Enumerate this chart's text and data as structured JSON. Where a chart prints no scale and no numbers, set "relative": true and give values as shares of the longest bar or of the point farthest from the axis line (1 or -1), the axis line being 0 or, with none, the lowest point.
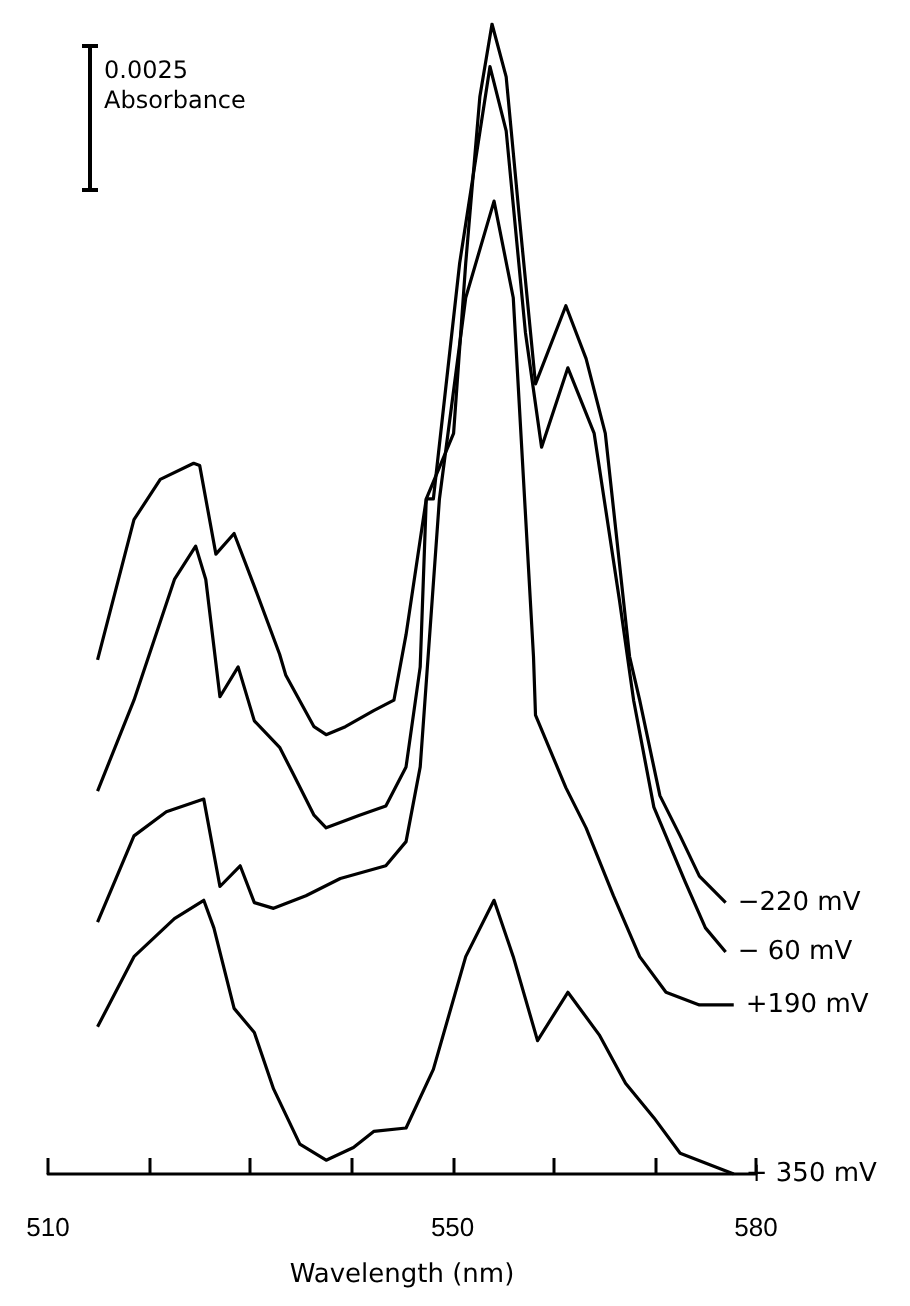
{
  "chart_data": {
    "type": "line",
    "relative": true,
    "xlabel": "Wavelength (nm)",
    "annotations": [
      "0.0025 Absorbance"
    ],
    "xlim": [
      510,
      580
    ],
    "xticks": [
      510,
      {
        "value": 520,
        "label": null
      },
      {
        "value": 530,
        "label": null
      },
      {
        "value": 540,
        "label": null
      },
      550,
      {
        "value": 560,
        "label": null
      },
      {
        "value": 570,
        "label": null
      },
      580
    ],
    "marker": "none",
    "line_style": "solid",
    "series": [
      {
        "name": "−220 mV",
        "color": "#000000",
        "x": [
          514.9,
          518.5,
          521.1,
          524.4,
          525.0,
          526.6,
          528.4,
          530.4,
          532.9,
          533.5,
          536.3,
          537.5,
          539.4,
          542.2,
          544.2,
          545.4,
          547.4,
          550.1,
          551.3,
          552.7,
          553.9,
          555.3,
          556.6,
          558.2,
          561.2,
          563.2,
          565.1,
          567.5,
          568.5,
          570.5,
          572.5,
          574.4,
          577.0
        ],
        "values": [
          0.447,
          0.569,
          0.604,
          0.618,
          0.616,
          0.539,
          0.557,
          0.511,
          0.452,
          0.434,
          0.389,
          0.382,
          0.389,
          0.403,
          0.412,
          0.469,
          0.587,
          0.644,
          0.792,
          0.937,
          1.0,
          0.954,
          0.832,
          0.687,
          0.755,
          0.709,
          0.644,
          0.45,
          0.412,
          0.329,
          0.294,
          0.259,
          0.236
        ]
      },
      {
        "name": "− 60 mV",
        "color": "#000000",
        "x": [
          514.9,
          518.5,
          522.5,
          524.6,
          525.6,
          527.0,
          528.8,
          530.4,
          532.9,
          534.3,
          536.3,
          537.5,
          540.8,
          543.4,
          545.4,
          546.8,
          547.4,
          548.1,
          550.7,
          553.7,
          555.3,
          557.2,
          558.8,
          561.4,
          564.0,
          566.5,
          567.9,
          569.9,
          573.0,
          575.0,
          577.0
        ],
        "values": [
          0.333,
          0.412,
          0.517,
          0.546,
          0.517,
          0.415,
          0.441,
          0.394,
          0.371,
          0.347,
          0.312,
          0.301,
          0.312,
          0.32,
          0.354,
          0.441,
          0.587,
          0.587,
          0.792,
          0.963,
          0.907,
          0.732,
          0.632,
          0.701,
          0.644,
          0.499,
          0.412,
          0.319,
          0.254,
          0.214,
          0.193
        ]
      },
      {
        "name": "+190 mV",
        "color": "#000000",
        "x": [
          514.9,
          518.5,
          521.7,
          525.4,
          527.0,
          529.0,
          530.4,
          532.3,
          535.5,
          538.9,
          543.4,
          545.4,
          546.8,
          548.7,
          551.3,
          554.1,
          556.0,
          558.0,
          558.2,
          561.2,
          563.2,
          565.9,
          568.5,
          571.1,
          574.4,
          577.8
        ],
        "values": [
          0.219,
          0.294,
          0.315,
          0.326,
          0.25,
          0.268,
          0.236,
          0.231,
          0.242,
          0.257,
          0.268,
          0.289,
          0.354,
          0.587,
          0.762,
          0.846,
          0.762,
          0.45,
          0.399,
          0.336,
          0.301,
          0.242,
          0.189,
          0.158,
          0.147,
          0.147
        ]
      },
      {
        "name": "+ 350 mV",
        "color": "#000000",
        "x": [
          514.9,
          518.5,
          522.5,
          525.4,
          526.4,
          528.4,
          530.4,
          532.3,
          534.9,
          537.5,
          540.2,
          542.2,
          545.4,
          548.1,
          551.3,
          554.1,
          556.0,
          558.4,
          561.4,
          564.5,
          567.1,
          569.9,
          572.5,
          577.8
        ],
        "values": [
          0.128,
          0.189,
          0.222,
          0.238,
          0.214,
          0.144,
          0.123,
          0.074,
          0.026,
          0.012,
          0.023,
          0.037,
          0.04,
          0.091,
          0.189,
          0.238,
          0.189,
          0.116,
          0.158,
          0.121,
          0.079,
          0.049,
          0.018,
          0.0
        ]
      }
    ]
  }
}
